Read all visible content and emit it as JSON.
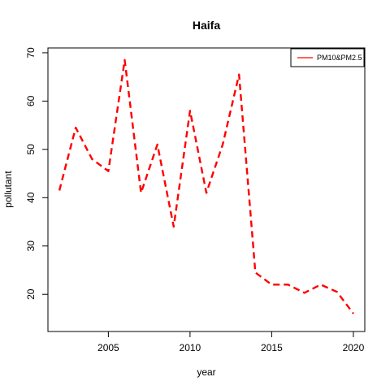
{
  "chart_data": {
    "type": "line",
    "title": "Haifa",
    "xlabel": "year",
    "ylabel": "pollutant",
    "xlim": [
      2001.3,
      2020.7
    ],
    "ylim": [
      12.3,
      71
    ],
    "x_ticks": [
      2005,
      2010,
      2015,
      2020
    ],
    "y_ticks": [
      20,
      30,
      40,
      50,
      60,
      70
    ],
    "x_tick_labels": [
      "2005",
      "2010",
      "2015",
      "2020"
    ],
    "y_tick_labels": [
      "20",
      "30",
      "40",
      "50",
      "60",
      "70"
    ],
    "grid": false,
    "legend_position": "top-right",
    "series": [
      {
        "name": "PM10&PM2.5",
        "color": "#ff0000",
        "line_style": "dashed",
        "x": [
          2002,
          2003,
          2004,
          2005,
          2006,
          2007,
          2008,
          2009,
          2010,
          2011,
          2012,
          2013,
          2014,
          2015,
          2016,
          2017,
          2018,
          2019,
          2020
        ],
        "y": [
          41.5,
          54.5,
          48,
          45.5,
          68.5,
          41,
          51,
          34,
          58,
          41,
          51,
          65.5,
          24.5,
          22,
          22,
          20.3,
          22,
          20.5,
          16
        ]
      }
    ]
  }
}
